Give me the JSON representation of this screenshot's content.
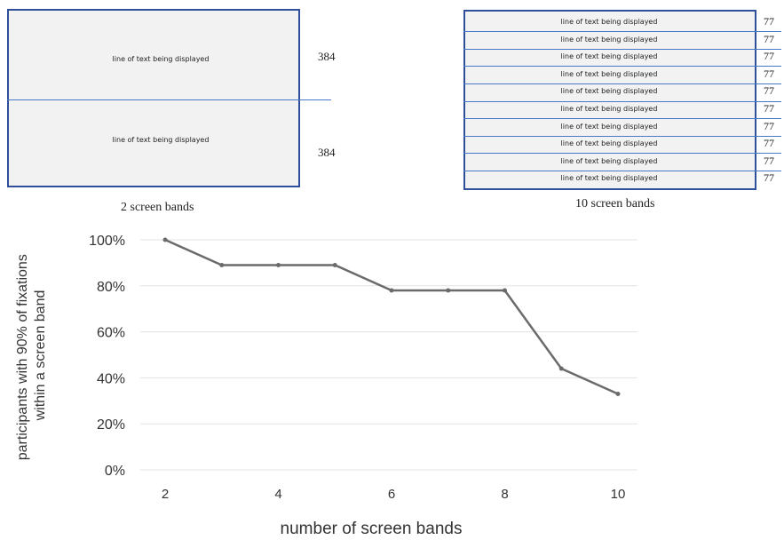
{
  "two_bands_diagram": {
    "line_texts": [
      "line of text being displayed",
      "line of text being displayed"
    ],
    "numbers": [
      "384",
      "384"
    ],
    "caption": "2 screen bands"
  },
  "ten_bands_diagram": {
    "line_texts": [
      "line of text being displayed",
      "line of text being displayed",
      "line of text being displayed",
      "line of text being displayed",
      "line of text being displayed",
      "line of text being displayed",
      "line of text being displayed",
      "line of text being displayed",
      "line of text being displayed",
      "line of text being displayed"
    ],
    "numbers": [
      "77",
      "77",
      "77",
      "77",
      "77",
      "77",
      "77",
      "77",
      "77",
      "77"
    ],
    "caption": "10 screen bands"
  },
  "colors": {
    "box_border": "#2f4f9a",
    "box_fill": "#f2f2f2",
    "divider": "#4a78c8",
    "line": "#6b6b6b",
    "grid": "#e3e3e3"
  },
  "chart_data": {
    "type": "line",
    "xlabel": "number of screen bands",
    "ylabel": "participants with 90% of fixations within a screen band",
    "x": [
      2,
      3,
      4,
      5,
      6,
      7,
      8,
      9,
      10
    ],
    "x_ticks": [
      "2",
      "4",
      "6",
      "8",
      "10"
    ],
    "y_ticks": [
      "0%",
      "20%",
      "40%",
      "60%",
      "80%",
      "100%"
    ],
    "ylim": [
      0,
      100
    ],
    "xlim": [
      2,
      10
    ],
    "grid": "horizontal",
    "series": [
      {
        "values": [
          100,
          89,
          89,
          89,
          78,
          78,
          78,
          44,
          33
        ]
      }
    ]
  }
}
